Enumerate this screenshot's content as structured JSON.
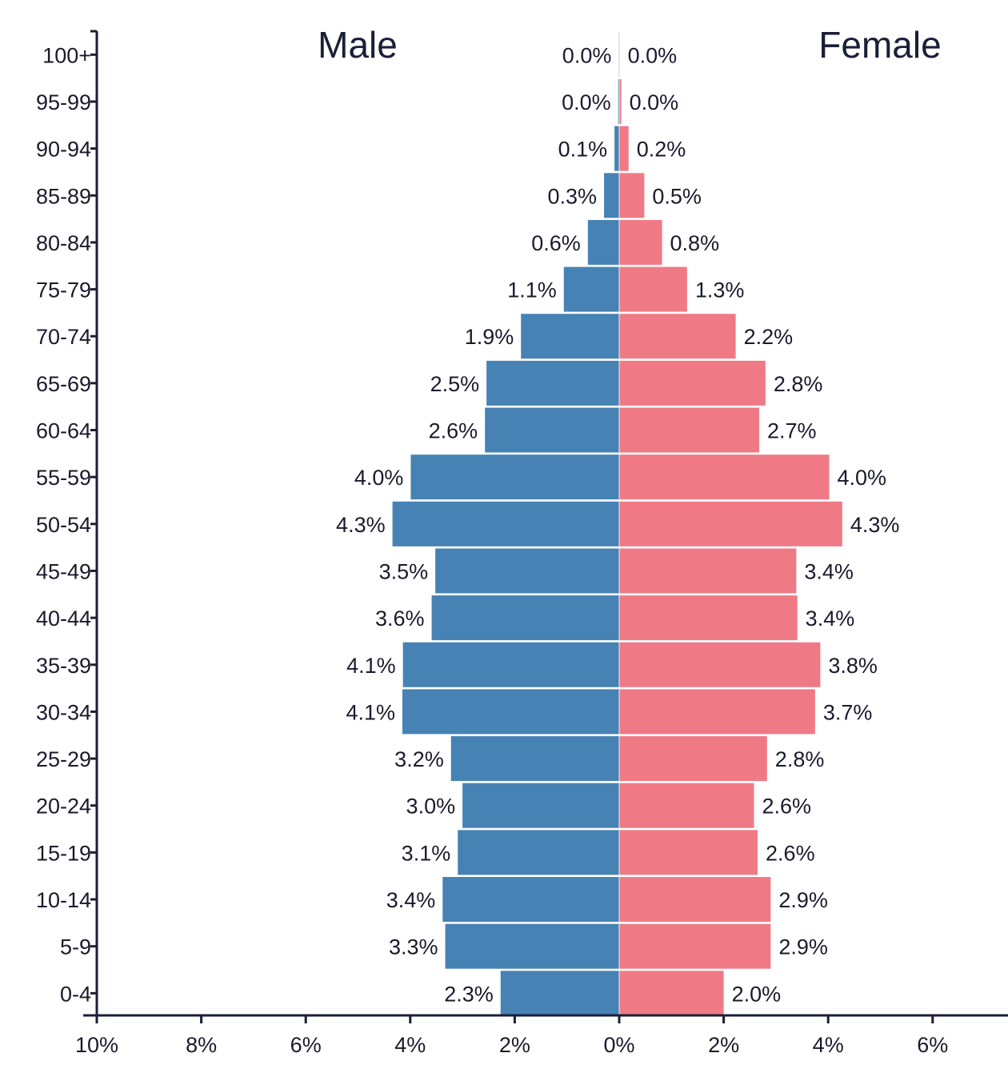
{
  "chart_data": {
    "type": "bar",
    "orientation": "horizontal-population-pyramid",
    "categories": [
      "100+",
      "95-99",
      "90-94",
      "85-89",
      "80-84",
      "75-79",
      "70-74",
      "65-69",
      "60-64",
      "55-59",
      "50-54",
      "45-49",
      "40-44",
      "35-39",
      "30-34",
      "25-29",
      "20-24",
      "15-19",
      "10-14",
      "5-9",
      "0-4"
    ],
    "series": [
      {
        "name": "Male",
        "color": "#4682b4",
        "values": [
          0.0,
          0.0,
          0.1,
          0.3,
          0.6,
          1.1,
          1.9,
          2.5,
          2.6,
          4.0,
          4.3,
          3.5,
          3.6,
          4.1,
          4.1,
          3.2,
          3.0,
          3.1,
          3.4,
          3.3,
          2.3
        ],
        "labels": [
          "0.0%",
          "0.0%",
          "0.1%",
          "0.3%",
          "0.6%",
          "1.1%",
          "1.9%",
          "2.5%",
          "2.6%",
          "4.0%",
          "4.3%",
          "3.5%",
          "3.6%",
          "4.1%",
          "4.1%",
          "3.2%",
          "3.0%",
          "3.1%",
          "3.4%",
          "3.3%",
          "2.3%"
        ]
      },
      {
        "name": "Female",
        "color": "#ef7a86",
        "values": [
          0.0,
          0.0,
          0.2,
          0.5,
          0.8,
          1.3,
          2.2,
          2.8,
          2.7,
          4.0,
          4.3,
          3.4,
          3.4,
          3.8,
          3.7,
          2.8,
          2.6,
          2.6,
          2.9,
          2.9,
          2.0
        ],
        "labels": [
          "0.0%",
          "0.0%",
          "0.2%",
          "0.5%",
          "0.8%",
          "1.3%",
          "2.2%",
          "2.8%",
          "2.7%",
          "4.0%",
          "4.3%",
          "3.4%",
          "3.4%",
          "3.8%",
          "3.7%",
          "2.8%",
          "2.6%",
          "2.6%",
          "2.9%",
          "2.9%",
          "2.0%"
        ]
      }
    ],
    "bar_values_precise": {
      "male": [
        0.01,
        0.02,
        0.09,
        0.29,
        0.6,
        1.06,
        1.88,
        2.54,
        2.57,
        3.99,
        4.34,
        3.52,
        3.59,
        4.14,
        4.15,
        3.22,
        3.0,
        3.09,
        3.38,
        3.33,
        2.27
      ],
      "female": [
        0.01,
        0.04,
        0.18,
        0.48,
        0.82,
        1.3,
        2.23,
        2.8,
        2.68,
        4.02,
        4.27,
        3.39,
        3.41,
        3.85,
        3.75,
        2.83,
        2.58,
        2.65,
        2.9,
        2.9,
        2.0
      ]
    },
    "x_ticks": [
      "10%",
      "8%",
      "6%",
      "4%",
      "2%",
      "0%",
      "2%",
      "4%",
      "6%"
    ],
    "x_tick_values": [
      -10,
      -8,
      -6,
      -4,
      -2,
      0,
      2,
      4,
      6
    ],
    "xlim": [
      -10,
      7.5
    ],
    "title_left": "Male",
    "title_right": "Female",
    "grid": false,
    "legend": "none"
  }
}
